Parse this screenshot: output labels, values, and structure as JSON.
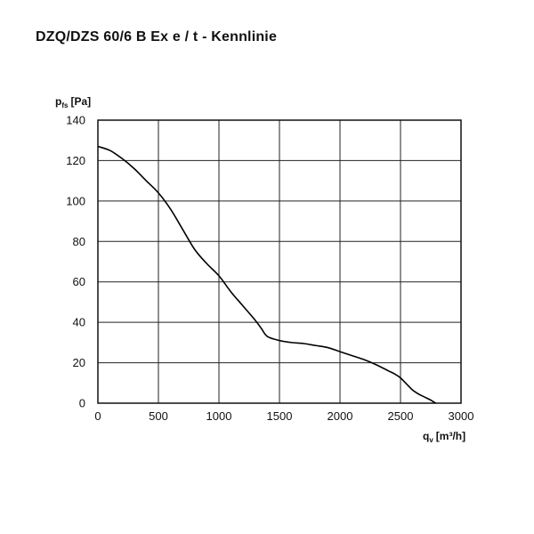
{
  "title": "DZQ/DZS 60/6 B Ex e / t - Kennlinie",
  "chart_data": {
    "type": "line",
    "title": "DZQ/DZS 60/6 B Ex e / t - Kennlinie",
    "ylabel": {
      "main": "p",
      "sub": "fs",
      "unit": "[Pa]"
    },
    "xlabel": {
      "main": "q",
      "sub": "v",
      "unit": "[m³/h]"
    },
    "xlim": [
      0,
      3000
    ],
    "ylim": [
      0,
      140
    ],
    "x_ticks": [
      "0",
      "500",
      "1000",
      "1500",
      "2000",
      "2500",
      "3000"
    ],
    "y_ticks": [
      "0",
      "20",
      "40",
      "60",
      "80",
      "100",
      "120",
      "140"
    ],
    "grid": true,
    "series": [
      {
        "x": [
          0,
          100,
          200,
          300,
          400,
          500,
          600,
          700,
          800,
          900,
          1000,
          1100,
          1200,
          1300,
          1350,
          1400,
          1500,
          1600,
          1700,
          1800,
          1900,
          2000,
          2100,
          2200,
          2300,
          2400,
          2450,
          2500,
          2550,
          2600,
          2650,
          2700,
          2750,
          2790
        ],
        "y": [
          127,
          125,
          121,
          116,
          110,
          104,
          96,
          86,
          76,
          69,
          63,
          55,
          48,
          41,
          37,
          33,
          31,
          30,
          29.5,
          28.5,
          27.5,
          25.5,
          23.5,
          21.5,
          19,
          16,
          14.5,
          12.5,
          9.5,
          6.5,
          4.5,
          3,
          1.5,
          0
        ]
      }
    ]
  }
}
